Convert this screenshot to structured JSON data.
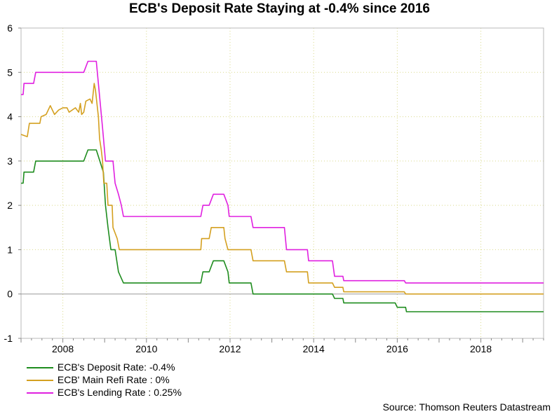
{
  "title": "ECB's Deposit Rate Staying at -0.4% since 2016",
  "source": "Source: Thomson Reuters Datastream",
  "chart_data": {
    "type": "line",
    "title": "ECB's Deposit Rate Staying at -0.4% since 2016",
    "xlabel": "",
    "ylabel": "",
    "xlim": [
      2007.0,
      2019.5
    ],
    "ylim": [
      -1,
      6
    ],
    "grid": true,
    "legend_position": "bottom-left",
    "x_ticks": [
      2008,
      2010,
      2012,
      2014,
      2016,
      2018
    ],
    "x_tick_labels": [
      "2008",
      "2010",
      "2012",
      "2014",
      "2016",
      "2018"
    ],
    "y_ticks": [
      -1,
      0,
      1,
      2,
      3,
      4,
      5,
      6
    ],
    "y_tick_labels": [
      "-1",
      "0",
      "1",
      "2",
      "3",
      "4",
      "5",
      "6"
    ],
    "series": [
      {
        "name": "ECB's Deposit Rate: -0.4%",
        "color": "#1e8c1e",
        "points": [
          [
            2007.0,
            2.5
          ],
          [
            2007.05,
            2.5
          ],
          [
            2007.07,
            2.75
          ],
          [
            2007.3,
            2.75
          ],
          [
            2007.35,
            3.0
          ],
          [
            2008.5,
            3.0
          ],
          [
            2008.6,
            3.25
          ],
          [
            2008.8,
            3.25
          ],
          [
            2008.97,
            2.75
          ],
          [
            2009.02,
            2.0
          ],
          [
            2009.08,
            1.5
          ],
          [
            2009.15,
            1.0
          ],
          [
            2009.25,
            1.0
          ],
          [
            2009.33,
            0.5
          ],
          [
            2009.45,
            0.25
          ],
          [
            2011.3,
            0.25
          ],
          [
            2011.35,
            0.5
          ],
          [
            2011.5,
            0.5
          ],
          [
            2011.6,
            0.75
          ],
          [
            2011.85,
            0.75
          ],
          [
            2011.95,
            0.5
          ],
          [
            2011.98,
            0.25
          ],
          [
            2012.5,
            0.25
          ],
          [
            2012.55,
            0.0
          ],
          [
            2014.45,
            0.0
          ],
          [
            2014.5,
            -0.1
          ],
          [
            2014.7,
            -0.1
          ],
          [
            2014.72,
            -0.2
          ],
          [
            2015.95,
            -0.2
          ],
          [
            2016.0,
            -0.3
          ],
          [
            2016.2,
            -0.3
          ],
          [
            2016.22,
            -0.4
          ],
          [
            2019.5,
            -0.4
          ]
        ]
      },
      {
        "name": "ECB' Main Refi Rate : 0%",
        "color": "#d4a020",
        "points": [
          [
            2007.0,
            3.6
          ],
          [
            2007.15,
            3.55
          ],
          [
            2007.2,
            3.85
          ],
          [
            2007.45,
            3.85
          ],
          [
            2007.48,
            4.0
          ],
          [
            2007.6,
            4.05
          ],
          [
            2007.7,
            4.25
          ],
          [
            2007.8,
            4.05
          ],
          [
            2007.9,
            4.15
          ],
          [
            2008.0,
            4.2
          ],
          [
            2008.1,
            4.2
          ],
          [
            2008.15,
            4.1
          ],
          [
            2008.3,
            4.2
          ],
          [
            2008.38,
            4.1
          ],
          [
            2008.42,
            4.3
          ],
          [
            2008.45,
            4.05
          ],
          [
            2008.5,
            4.1
          ],
          [
            2008.55,
            4.35
          ],
          [
            2008.65,
            4.4
          ],
          [
            2008.7,
            4.3
          ],
          [
            2008.75,
            4.75
          ],
          [
            2008.78,
            4.6
          ],
          [
            2008.85,
            4.0
          ],
          [
            2008.88,
            3.5
          ],
          [
            2008.92,
            3.25
          ],
          [
            2008.95,
            3.0
          ],
          [
            2008.98,
            2.5
          ],
          [
            2009.05,
            2.5
          ],
          [
            2009.08,
            2.0
          ],
          [
            2009.18,
            2.0
          ],
          [
            2009.2,
            1.5
          ],
          [
            2009.3,
            1.25
          ],
          [
            2009.35,
            1.0
          ],
          [
            2011.3,
            1.0
          ],
          [
            2011.32,
            1.25
          ],
          [
            2011.5,
            1.25
          ],
          [
            2011.55,
            1.5
          ],
          [
            2011.85,
            1.5
          ],
          [
            2011.88,
            1.25
          ],
          [
            2011.95,
            1.0
          ],
          [
            2012.5,
            1.0
          ],
          [
            2012.55,
            0.75
          ],
          [
            2013.3,
            0.75
          ],
          [
            2013.35,
            0.5
          ],
          [
            2013.85,
            0.5
          ],
          [
            2013.88,
            0.25
          ],
          [
            2014.45,
            0.25
          ],
          [
            2014.5,
            0.15
          ],
          [
            2014.7,
            0.15
          ],
          [
            2014.72,
            0.05
          ],
          [
            2016.17,
            0.05
          ],
          [
            2016.2,
            0.0
          ],
          [
            2019.5,
            0.0
          ]
        ]
      },
      {
        "name": "ECB's Lending Rate : 0.25%",
        "color": "#e020e0",
        "points": [
          [
            2007.0,
            4.5
          ],
          [
            2007.05,
            4.5
          ],
          [
            2007.07,
            4.75
          ],
          [
            2007.3,
            4.75
          ],
          [
            2007.35,
            5.0
          ],
          [
            2008.5,
            5.0
          ],
          [
            2008.6,
            5.25
          ],
          [
            2008.8,
            5.25
          ],
          [
            2008.95,
            3.75
          ],
          [
            2009.02,
            3.0
          ],
          [
            2009.2,
            3.0
          ],
          [
            2009.25,
            2.5
          ],
          [
            2009.33,
            2.25
          ],
          [
            2009.4,
            2.0
          ],
          [
            2009.45,
            1.75
          ],
          [
            2011.3,
            1.75
          ],
          [
            2011.35,
            2.0
          ],
          [
            2011.5,
            2.0
          ],
          [
            2011.6,
            2.25
          ],
          [
            2011.85,
            2.25
          ],
          [
            2011.95,
            2.0
          ],
          [
            2011.98,
            1.75
          ],
          [
            2012.5,
            1.75
          ],
          [
            2012.55,
            1.5
          ],
          [
            2013.3,
            1.5
          ],
          [
            2013.35,
            1.0
          ],
          [
            2013.85,
            1.0
          ],
          [
            2013.88,
            0.75
          ],
          [
            2014.45,
            0.75
          ],
          [
            2014.5,
            0.4
          ],
          [
            2014.7,
            0.4
          ],
          [
            2014.72,
            0.3
          ],
          [
            2016.17,
            0.3
          ],
          [
            2016.2,
            0.25
          ],
          [
            2019.5,
            0.25
          ]
        ]
      }
    ]
  }
}
